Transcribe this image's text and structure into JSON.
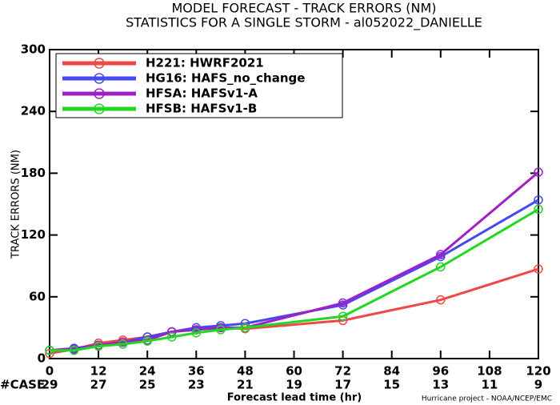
{
  "chart_data": {
    "type": "line",
    "title": "MODEL FORECAST - TRACK ERRORS (NM)",
    "subtitle": "STATISTICS FOR A SINGLE STORM - al052022_DANIELLE",
    "y_label": "TRACK ERRORS (NM)",
    "x_label": "Forecast lead time (hr)",
    "footer": "Hurricane project - NOAA/NCEP/EMC",
    "x": [
      0,
      6,
      12,
      18,
      24,
      30,
      36,
      42,
      48,
      72,
      96,
      120
    ],
    "series": [
      {
        "name": "H221: HWRF2021",
        "color": "#f04848",
        "values": [
          5,
          9,
          15,
          18,
          21,
          26,
          28,
          30,
          29,
          37,
          57,
          87
        ]
      },
      {
        "name": "HG16: HAFS_no_change",
        "color": "#4848f0",
        "values": [
          8,
          10,
          13,
          16,
          21,
          26,
          30,
          32,
          34,
          52,
          99,
          154
        ]
      },
      {
        "name": "HFSA: HAFSv1-A",
        "color": "#a020c8",
        "values": [
          8,
          9,
          13,
          16,
          18,
          26,
          28,
          30,
          30,
          54,
          101,
          181
        ]
      },
      {
        "name": "HFSB: HAFSv1-B",
        "color": "#20d820",
        "values": [
          8,
          8,
          12,
          14,
          17,
          21,
          25,
          28,
          30,
          41,
          89,
          145
        ]
      }
    ],
    "xlim": [
      0,
      120
    ],
    "xticks": [
      0,
      12,
      24,
      36,
      48,
      60,
      72,
      84,
      96,
      108,
      120
    ],
    "ylim": [
      0,
      300
    ],
    "yticks": [
      0,
      60,
      120,
      180,
      240,
      300
    ],
    "grid": false,
    "legend": "upper left",
    "cases": {
      "label": "#CASE",
      "color": "#20b8c8",
      "x": [
        0,
        12,
        24,
        36,
        48,
        60,
        72,
        84,
        96,
        108,
        120
      ],
      "values": [
        29,
        27,
        25,
        23,
        21,
        19,
        17,
        15,
        13,
        11,
        9
      ]
    }
  }
}
